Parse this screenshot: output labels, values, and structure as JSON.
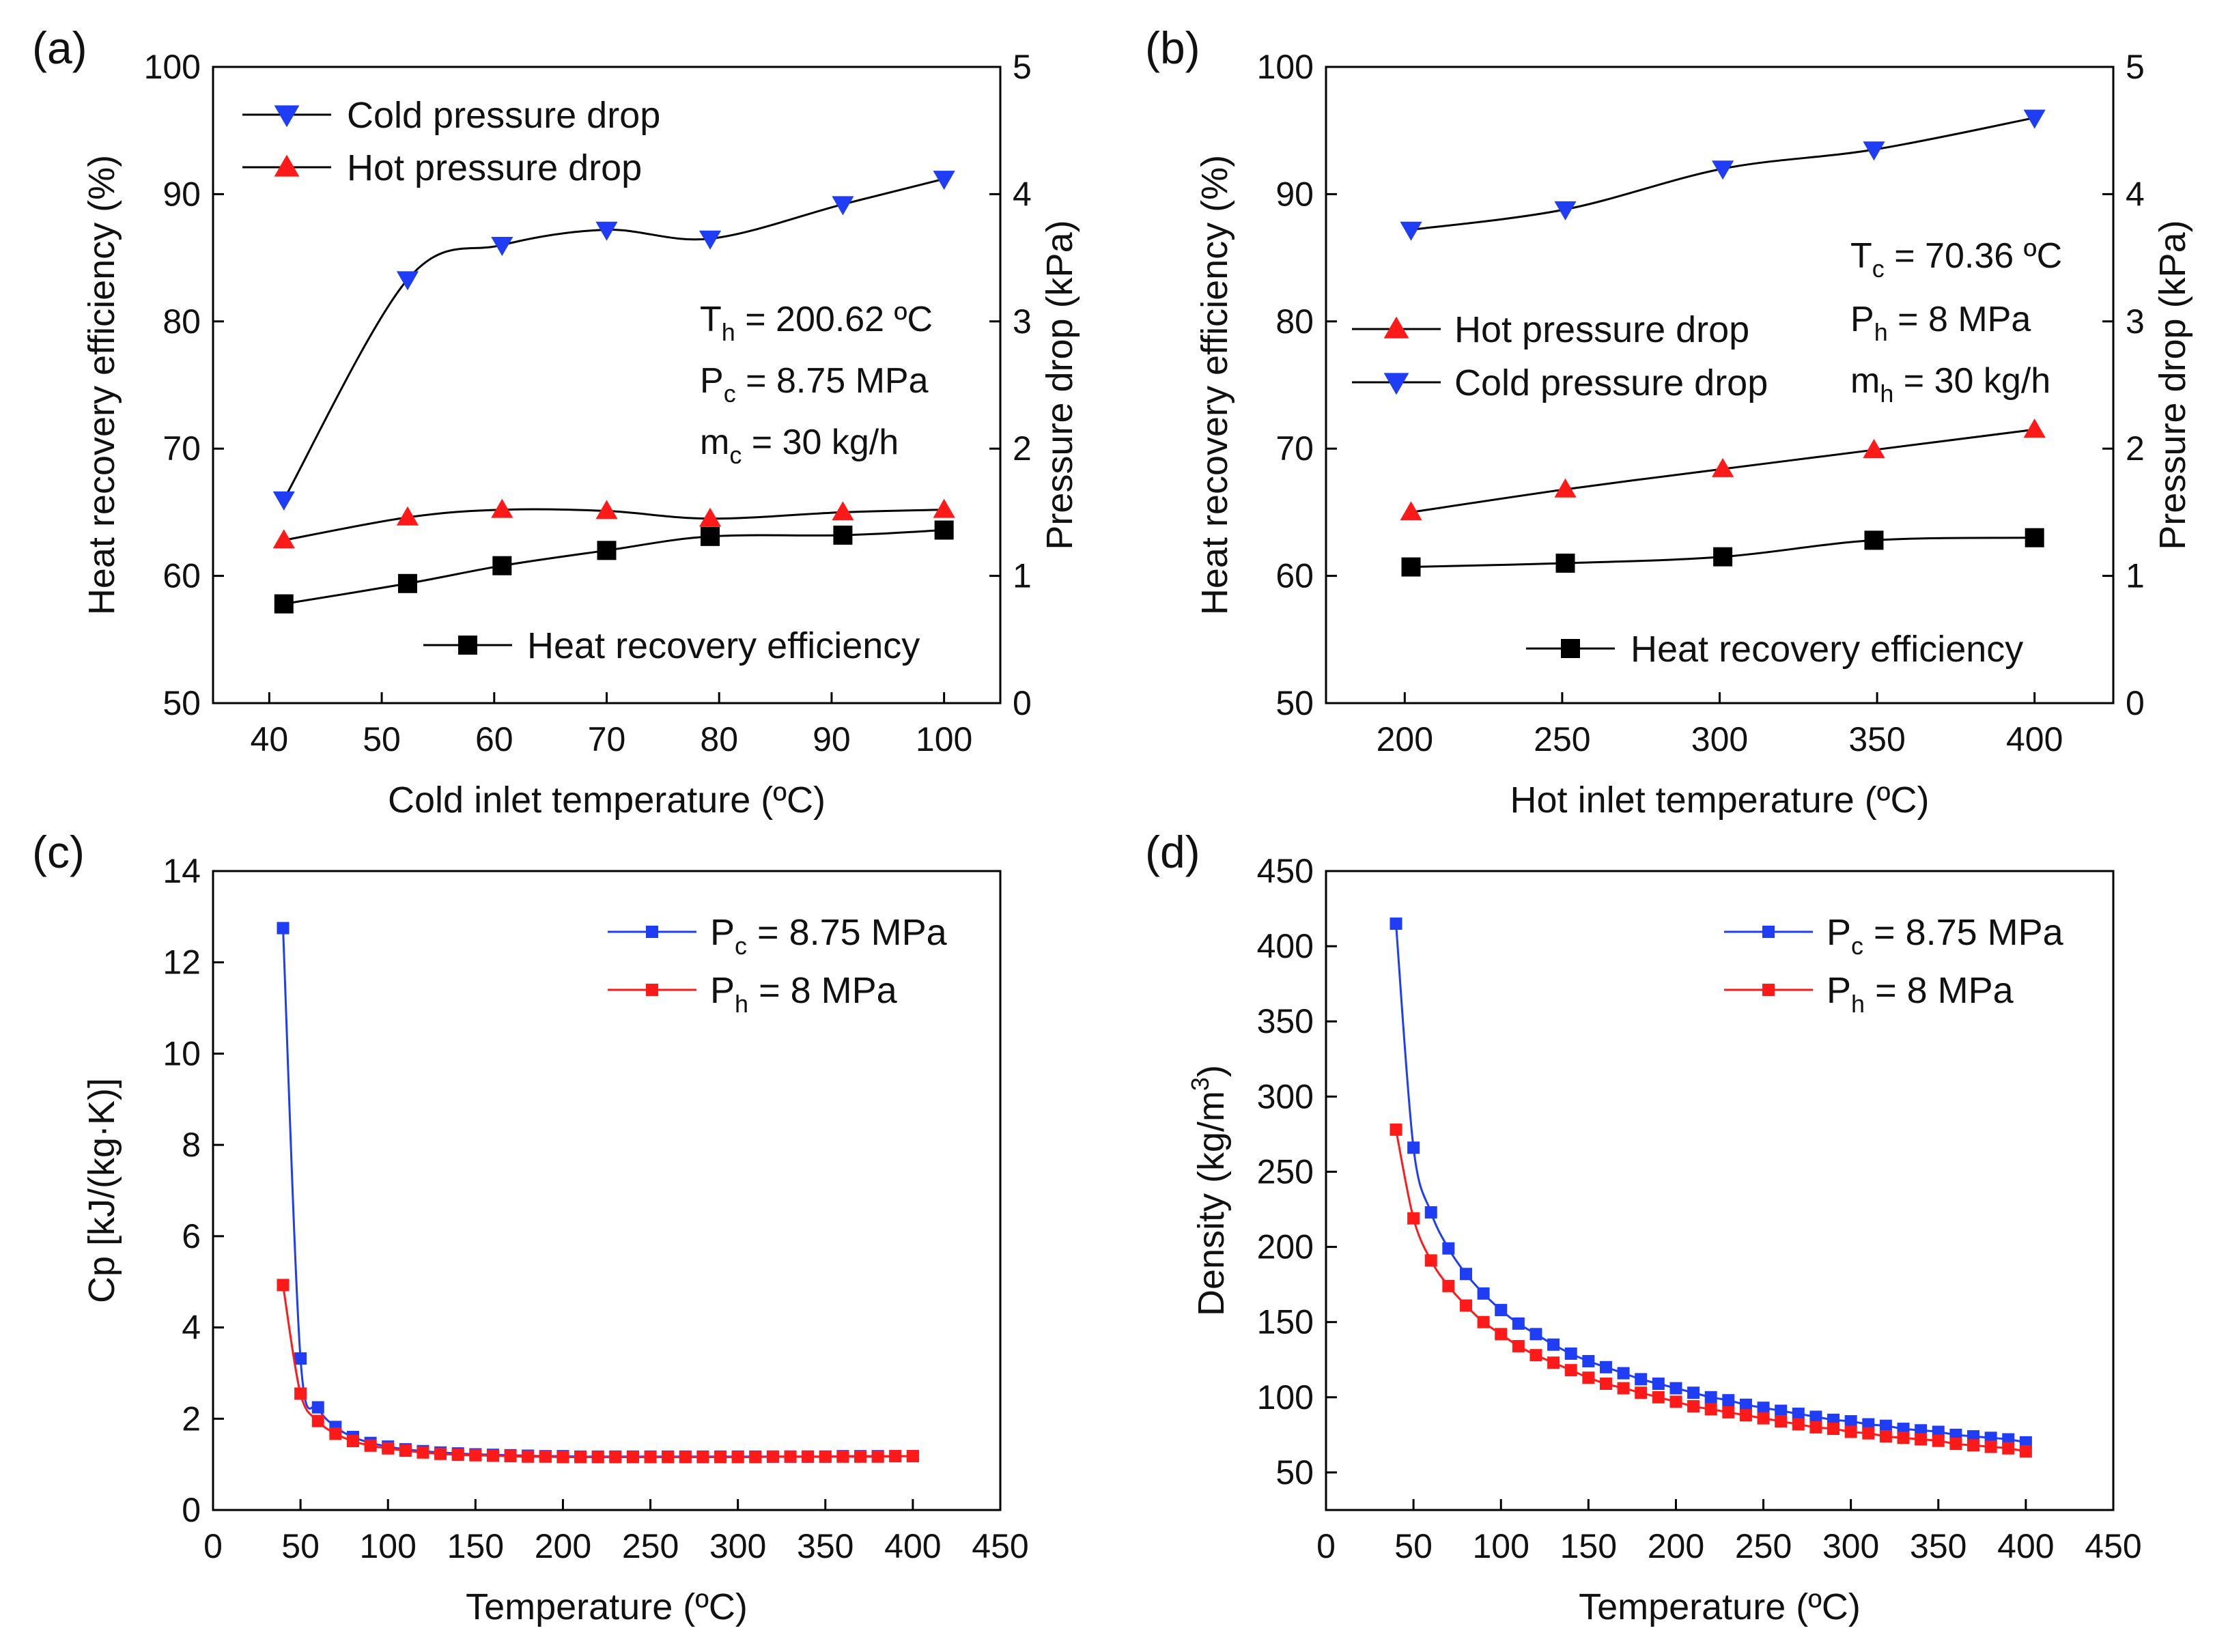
{
  "chart_data": [
    {
      "panel_label": "(a)",
      "type": "line",
      "xlabel": "Cold inlet temperature (ºC)",
      "ylabel": "Heat recovery efficiency (%)",
      "y2label": "Pressure drop (kPa)",
      "xlim": [
        35,
        105
      ],
      "ylim": [
        50,
        100
      ],
      "y2lim": [
        0,
        5
      ],
      "x_ticks": [
        "40",
        "50",
        "60",
        "70",
        "80",
        "90",
        "100"
      ],
      "y_ticks": [
        "50",
        "60",
        "70",
        "80",
        "90",
        "100"
      ],
      "y2_ticks": [
        "0",
        "1",
        "2",
        "3",
        "4",
        "5"
      ],
      "series": [
        {
          "name": "Cold pressure drop",
          "axis": "right",
          "color": "#1f3df5",
          "marker": "triangle-down",
          "x": [
            41.3,
            52.3,
            60.7,
            70.0,
            79.2,
            91.0,
            100.0
          ],
          "values": [
            1.6,
            3.33,
            3.6,
            3.72,
            3.65,
            3.92,
            4.12
          ]
        },
        {
          "name": "Hot pressure drop",
          "axis": "right",
          "color": "#ff1a1a",
          "marker": "triangle-up",
          "x": [
            41.3,
            52.3,
            60.7,
            70.0,
            79.2,
            91.0,
            100.0
          ],
          "values": [
            1.28,
            1.46,
            1.52,
            1.51,
            1.45,
            1.5,
            1.52
          ]
        },
        {
          "name": "Heat recovery efficiency",
          "axis": "left",
          "color": "#000000",
          "marker": "square",
          "x": [
            41.3,
            52.3,
            60.7,
            70.0,
            79.2,
            91.0,
            100.0
          ],
          "values": [
            57.8,
            59.4,
            60.8,
            62.0,
            63.1,
            63.2,
            63.6
          ]
        }
      ],
      "annotation": {
        "th": {
          "main": "T",
          "sub": "h",
          "rest": " = 200.62 ºC"
        },
        "pc": {
          "main": "P",
          "sub": "c",
          "rest": " = 8.75 MPa"
        },
        "mc": {
          "main": "m",
          "sub": "c",
          "rest": " = 30 kg/h"
        }
      }
    },
    {
      "panel_label": "(b)",
      "type": "line",
      "xlabel": "Hot inlet temperature (ºC)",
      "ylabel": "Heat recovery efficiency (%)",
      "y2label": "Pressure drop (kPa)",
      "xlim": [
        175,
        425
      ],
      "ylim": [
        50,
        100
      ],
      "y2lim": [
        0,
        5
      ],
      "x_ticks": [
        "200",
        "250",
        "300",
        "350",
        "400"
      ],
      "y_ticks": [
        "50",
        "60",
        "70",
        "80",
        "90",
        "100"
      ],
      "y2_ticks": [
        "0",
        "1",
        "2",
        "3",
        "4",
        "5"
      ],
      "series": [
        {
          "name": "Hot pressure drop",
          "axis": "right",
          "color": "#ff1a1a",
          "marker": "triangle-up",
          "x": [
            202,
            251,
            301,
            349,
            400
          ],
          "values": [
            1.5,
            1.68,
            1.84,
            1.99,
            2.15
          ]
        },
        {
          "name": "Cold pressure drop",
          "axis": "right",
          "color": "#1f3df5",
          "marker": "triangle-down",
          "x": [
            202,
            251,
            301,
            349,
            400
          ],
          "values": [
            3.72,
            3.88,
            4.2,
            4.35,
            4.6
          ]
        },
        {
          "name": "Heat recovery efficiency",
          "axis": "left",
          "color": "#000000",
          "marker": "square",
          "x": [
            202,
            251,
            301,
            349,
            400
          ],
          "values": [
            60.7,
            61.0,
            61.5,
            62.8,
            63.0
          ]
        }
      ],
      "annotation": {
        "tc": {
          "main": "T",
          "sub": "c",
          "rest": " = 70.36 ºC"
        },
        "ph": {
          "main": "P",
          "sub": "h",
          "rest": " = 8 MPa"
        },
        "mh": {
          "main": "m",
          "sub": "h",
          "rest": " = 30 kg/h"
        }
      }
    },
    {
      "panel_label": "(c)",
      "type": "line",
      "xlabel": "Temperature (ºC)",
      "ylabel": "Cp [kJ/(kg·K)]",
      "xlim": [
        0,
        450
      ],
      "ylim": [
        0,
        14
      ],
      "x_ticks": [
        "0",
        "50",
        "100",
        "150",
        "200",
        "250",
        "300",
        "350",
        "400",
        "450"
      ],
      "y_ticks": [
        "0",
        "2",
        "4",
        "6",
        "8",
        "10",
        "12",
        "14"
      ],
      "x": [
        40,
        50,
        60,
        70,
        80,
        90,
        100,
        110,
        120,
        130,
        140,
        150,
        160,
        170,
        180,
        190,
        200,
        210,
        220,
        230,
        240,
        250,
        260,
        270,
        280,
        290,
        300,
        310,
        320,
        330,
        340,
        350,
        360,
        370,
        380,
        390,
        400
      ],
      "series": [
        {
          "name": "Pc = 8.75 MPa",
          "label": {
            "main": "P",
            "sub": "c",
            "rest": " = 8.75 MPa"
          },
          "color": "#1f3df5",
          "values": [
            12.75,
            3.32,
            2.25,
            1.82,
            1.6,
            1.47,
            1.39,
            1.33,
            1.29,
            1.26,
            1.24,
            1.22,
            1.21,
            1.2,
            1.19,
            1.18,
            1.18,
            1.17,
            1.17,
            1.17,
            1.17,
            1.17,
            1.17,
            1.17,
            1.17,
            1.17,
            1.17,
            1.17,
            1.17,
            1.17,
            1.17,
            1.17,
            1.18,
            1.18,
            1.18,
            1.18,
            1.18
          ]
        },
        {
          "name": "Ph = 8 MPa",
          "label": {
            "main": "P",
            "sub": "h",
            "rest": " = 8 MPa"
          },
          "color": "#ff1a1a",
          "values": [
            4.93,
            2.55,
            1.95,
            1.67,
            1.51,
            1.41,
            1.35,
            1.3,
            1.26,
            1.23,
            1.21,
            1.2,
            1.19,
            1.18,
            1.17,
            1.17,
            1.16,
            1.16,
            1.16,
            1.16,
            1.16,
            1.16,
            1.16,
            1.16,
            1.16,
            1.16,
            1.16,
            1.16,
            1.17,
            1.17,
            1.17,
            1.17,
            1.17,
            1.17,
            1.17,
            1.18,
            1.18
          ]
        }
      ]
    },
    {
      "panel_label": "(d)",
      "type": "line",
      "xlabel": "Temperature (ºC)",
      "ylabel": {
        "main": "Density (kg/m",
        "sup": "3",
        "rest": ")"
      },
      "xlim": [
        0,
        450
      ],
      "ylim": [
        25,
        450
      ],
      "x_ticks": [
        "0",
        "50",
        "100",
        "150",
        "200",
        "250",
        "300",
        "350",
        "400",
        "450"
      ],
      "y_ticks": [
        "50",
        "100",
        "150",
        "200",
        "250",
        "300",
        "350",
        "400",
        "450"
      ],
      "x": [
        40,
        50,
        60,
        70,
        80,
        90,
        100,
        110,
        120,
        130,
        140,
        150,
        160,
        170,
        180,
        190,
        200,
        210,
        220,
        230,
        240,
        250,
        260,
        270,
        280,
        290,
        300,
        310,
        320,
        330,
        340,
        350,
        360,
        370,
        380,
        390,
        400
      ],
      "series": [
        {
          "name": "Pc = 8.75 MPa",
          "label": {
            "main": "P",
            "sub": "c",
            "rest": " = 8.75 MPa"
          },
          "color": "#1f3df5",
          "values": [
            415,
            266,
            223,
            199,
            182,
            169,
            158,
            149,
            142,
            135,
            129,
            124,
            120,
            116,
            112,
            109,
            106,
            103,
            100,
            98,
            95,
            93,
            91,
            89,
            87,
            85,
            84,
            82,
            81,
            79,
            78,
            77,
            75,
            74,
            73,
            72,
            70
          ]
        },
        {
          "name": "Ph = 8 MPa",
          "label": {
            "main": "P",
            "sub": "h",
            "rest": " = 8 MPa"
          },
          "color": "#ff1a1a",
          "values": [
            278,
            219,
            191,
            174,
            161,
            150,
            142,
            134,
            128,
            123,
            118,
            113,
            109,
            106,
            103,
            100,
            97,
            94,
            92,
            90,
            88,
            86,
            84,
            82,
            80,
            79,
            77,
            76,
            74,
            73,
            72,
            71,
            69,
            68,
            67,
            66,
            64
          ]
        }
      ]
    }
  ]
}
